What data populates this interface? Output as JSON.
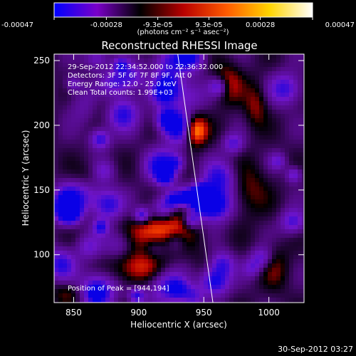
{
  "colorbar": {
    "tick_labels": [
      "-0.00047",
      "-0.00028",
      "-9.3e-05",
      "9.3e-05",
      "0.00028",
      "0.00047"
    ],
    "tick_values": [
      -0.00047,
      -0.00028,
      -9.3e-05,
      9.3e-05,
      0.00028,
      0.00047
    ],
    "range": [
      -0.00047,
      0.00047
    ],
    "units_text": "(photons cm⁻² s⁻¹ asec⁻²)",
    "colors": [
      "#0000ff",
      "#7a00c8",
      "#000000",
      "#b80000",
      "#ff5a00",
      "#ffd400",
      "#ffffff"
    ]
  },
  "chart_data": {
    "type": "heatmap",
    "title": "Reconstructed RHESSI Image",
    "xlabel": "Heliocentric X (arcsec)",
    "ylabel": "Heliocentric Y (arcsec)",
    "xlim": [
      835,
      1027
    ],
    "ylim": [
      63,
      255
    ],
    "x_ticks": [
      850,
      900,
      950,
      1000
    ],
    "y_ticks": [
      100,
      150,
      200,
      250
    ],
    "annotations": [
      "29-Sep-2012 22:34:52.000 to 22:36:32.000",
      "Detectors: 3F 5F 6F 7F 8F 9F, Att 0",
      "Energy Range: 12.0 - 25.0 keV",
      "Clean     Total counts: 1.99E+03"
    ],
    "peak_label": "Position of Peak = [944,194]",
    "peak": [
      944,
      194
    ],
    "limb_line": [
      [
        930,
        255
      ],
      [
        957,
        63
      ]
    ],
    "sources": [
      {
        "x": 944,
        "y": 196,
        "sx": 6,
        "sy": 8,
        "amp": 1.0
      },
      {
        "x": 916,
        "y": 117,
        "sx": 16,
        "sy": 10,
        "amp": 0.85
      },
      {
        "x": 932,
        "y": 144,
        "sx": 10,
        "sy": 14,
        "amp": 0.7
      },
      {
        "x": 900,
        "y": 90,
        "sx": 14,
        "sy": 9,
        "amp": 0.6
      },
      {
        "x": 968,
        "y": 232,
        "sx": 8,
        "sy": 10,
        "amp": 0.55
      },
      {
        "x": 990,
        "y": 215,
        "sx": 6,
        "sy": 12,
        "amp": 0.4
      },
      {
        "x": 870,
        "y": 215,
        "sx": 14,
        "sy": 8,
        "amp": 0.35
      },
      {
        "x": 985,
        "y": 150,
        "sx": 10,
        "sy": 14,
        "amp": 0.35
      },
      {
        "x": 1005,
        "y": 90,
        "sx": 8,
        "sy": 12,
        "amp": 0.3
      },
      {
        "x": 860,
        "y": 160,
        "sx": 8,
        "sy": 8,
        "amp": 0.25
      },
      {
        "x": 960,
        "y": 95,
        "sx": 10,
        "sy": 8,
        "amp": 0.4
      },
      {
        "x": 845,
        "y": 70,
        "sx": 8,
        "sy": 6,
        "amp": 0.3
      }
    ]
  },
  "footer": {
    "timestamp": "30-Sep-2012 03:27"
  }
}
